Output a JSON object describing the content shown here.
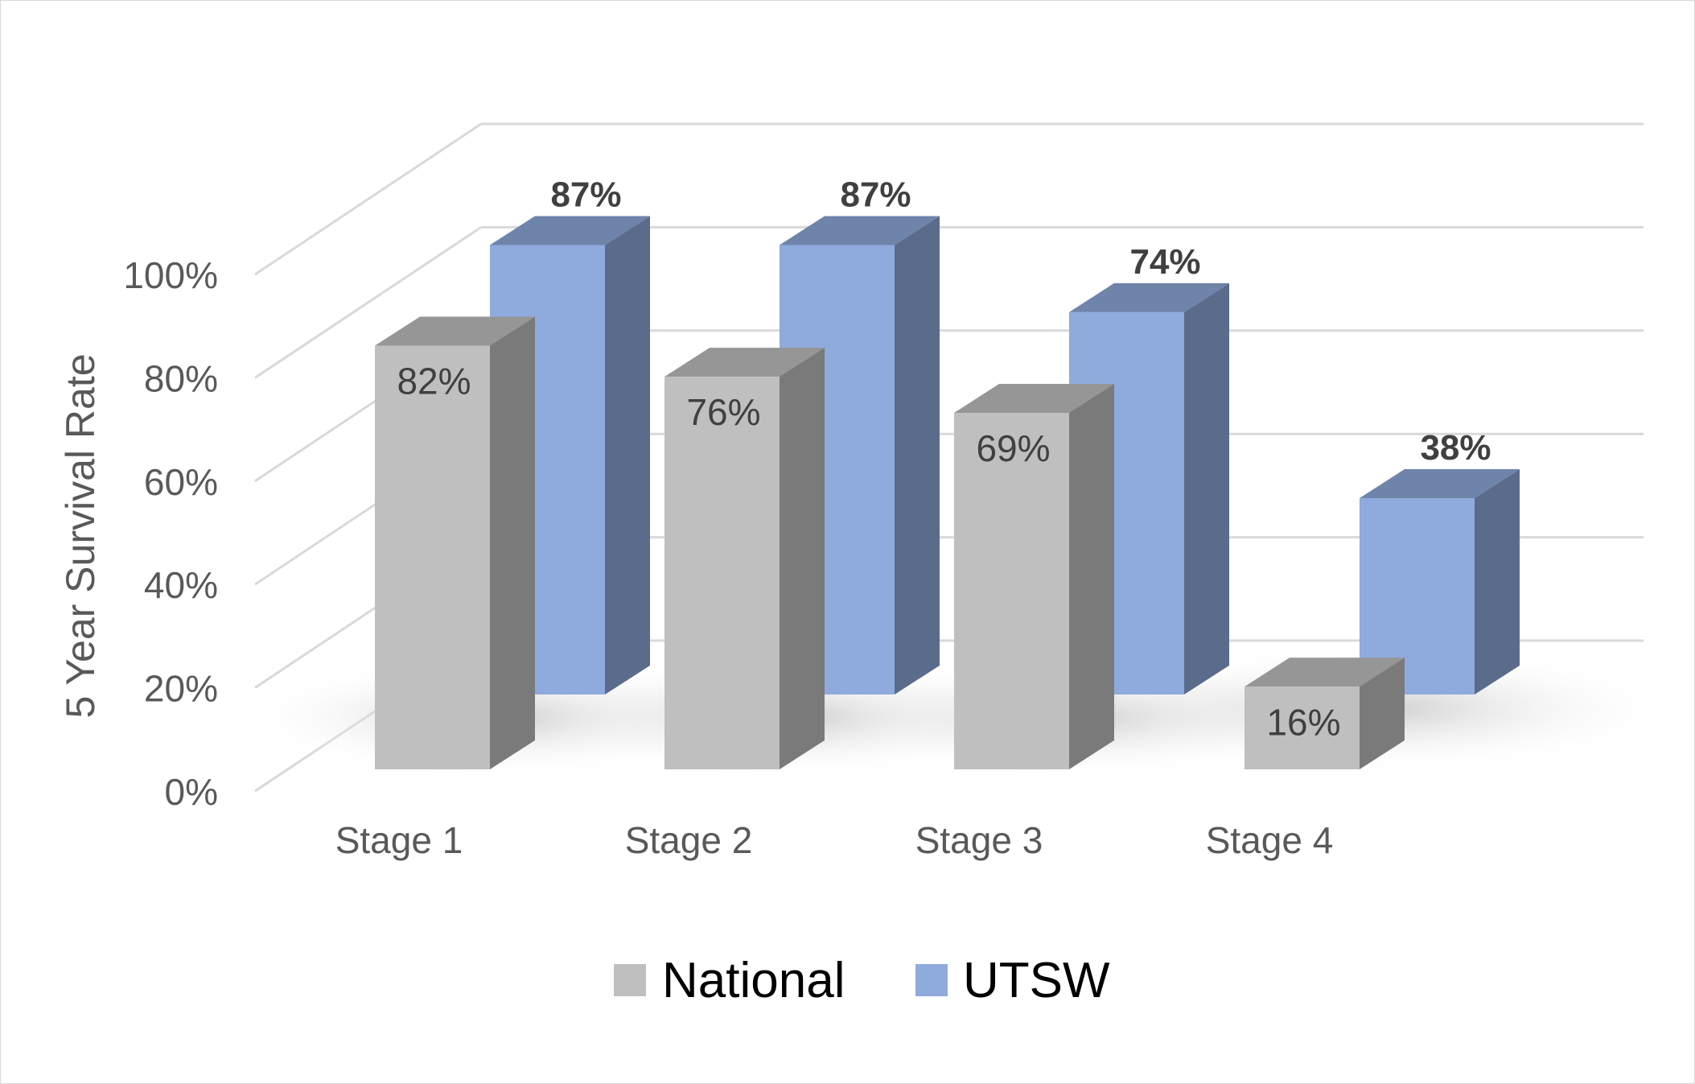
{
  "chart_data": {
    "type": "bar",
    "ylabel": "5 Year Survival Rate",
    "categories": [
      "Stage 1",
      "Stage 2",
      "Stage 3",
      "Stage 4"
    ],
    "ylim": [
      0,
      100
    ],
    "yticks": [
      "0%",
      "20%",
      "40%",
      "60%",
      "80%",
      "100%"
    ],
    "series": [
      {
        "name": "National",
        "values": [
          82,
          76,
          69,
          16
        ],
        "data_labels": [
          "82%",
          "76%",
          "69%",
          "16%"
        ],
        "colors": {
          "front": "#bfbfbf",
          "side": "#7a7a7a",
          "top": "#969696"
        }
      },
      {
        "name": "UTSW",
        "values": [
          87,
          87,
          74,
          38
        ],
        "data_labels": [
          "87%",
          "87%",
          "74%",
          "38%"
        ],
        "colors": {
          "front": "#8faadc",
          "side": "#5b6b8c",
          "top": "#6f84ab"
        }
      }
    ],
    "legend": "bottom",
    "grid": true,
    "style": "3d-column"
  }
}
